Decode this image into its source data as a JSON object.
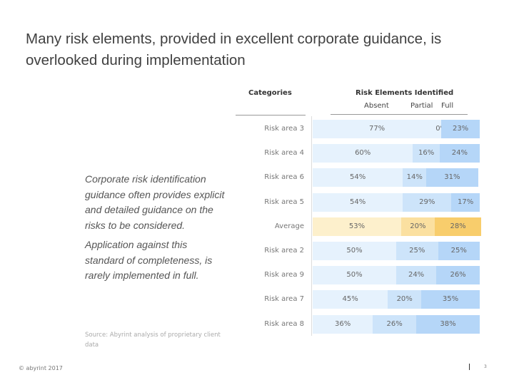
{
  "title": "Many risk elements, provided in excellent corporate guidance, is overlooked during implementation",
  "quote": [
    "Corporate risk identification guidance often provides explicit and detailed guidance on the risks to be considered.",
    "Application against this standard of completeness, is rarely implemented in full."
  ],
  "source": "Source: Abyrint analysis of proprietary client data",
  "footer": {
    "copyright": "© abyrint 2017",
    "page": "3"
  },
  "chart_data": {
    "type": "bar",
    "orientation": "horizontal-stacked-100",
    "column_header_categories": "Categories",
    "column_header_values": "Risk Elements Identified",
    "categories": [
      "Risk area 3",
      "Risk area 4",
      "Risk area 6",
      "Risk area 5",
      "Average",
      "Risk area 2",
      "Risk area 9",
      "Risk area 7",
      "Risk area 8"
    ],
    "series": [
      {
        "name": "Absent",
        "values": [
          77,
          60,
          54,
          54,
          53,
          50,
          50,
          45,
          36
        ]
      },
      {
        "name": "Partial",
        "values": [
          0,
          16,
          14,
          29,
          20,
          25,
          24,
          20,
          26
        ]
      },
      {
        "name": "Full",
        "values": [
          23,
          24,
          31,
          17,
          28,
          25,
          26,
          35,
          38
        ]
      }
    ],
    "value_suffix": "%",
    "colors": {
      "Absent": "#e6f2fd",
      "Partial": "#cde4fa",
      "Full": "#b5d6f8"
    },
    "highlight_colors": {
      "Absent": "#fdf0cc",
      "Partial": "#fbe0a0",
      "Full": "#f8cd6c"
    },
    "highlight_category": "Average"
  }
}
